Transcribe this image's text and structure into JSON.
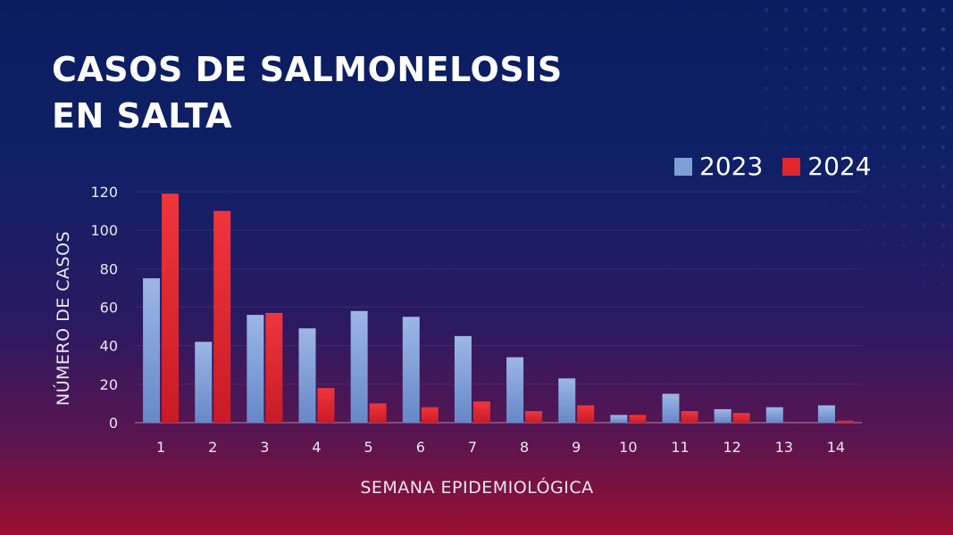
{
  "title_lines": [
    "CASOS DE SALMONELOSIS",
    "EN SALTA"
  ],
  "chart_data": {
    "type": "bar",
    "title": "CASOS DE SALMONELOSIS EN SALTA",
    "xlabel": "SEMANA EPIDEMIOLÓGICA",
    "ylabel": "NÚMERO DE CASOS",
    "ylim": [
      0,
      120
    ],
    "yticks": [
      0,
      20,
      40,
      60,
      80,
      100,
      120
    ],
    "grid": true,
    "legend_position": "top-right",
    "categories": [
      "1",
      "2",
      "3",
      "4",
      "5",
      "6",
      "7",
      "8",
      "9",
      "10",
      "11",
      "12",
      "13",
      "14"
    ],
    "series": [
      {
        "name": "2023",
        "color": "#7e9fd6",
        "values": [
          75,
          42,
          56,
          49,
          58,
          55,
          45,
          34,
          23,
          4,
          15,
          7,
          8,
          9
        ]
      },
      {
        "name": "2024",
        "color": "#e0262e",
        "values": [
          119,
          110,
          57,
          18,
          10,
          8,
          11,
          6,
          9,
          4,
          6,
          5,
          0,
          1
        ]
      }
    ]
  }
}
